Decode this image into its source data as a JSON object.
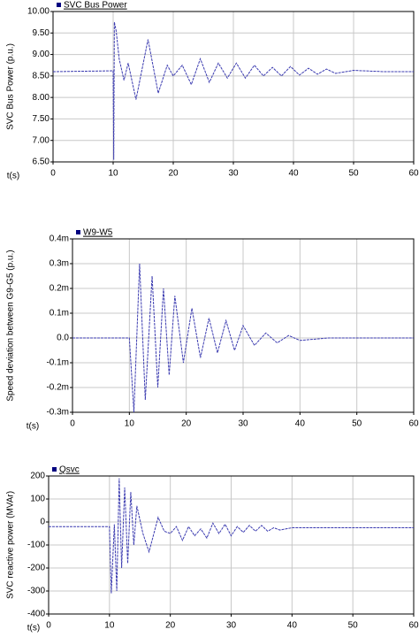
{
  "chart_data": [
    {
      "type": "line",
      "y_label": "SVC Bus Power (p.u.)",
      "x_label": "t(s)",
      "x": [
        0,
        10,
        10.1,
        10.2,
        10.5,
        11,
        11.8,
        12.5,
        13.8,
        15.8,
        17.5,
        19,
        20,
        21.5,
        23,
        24.5,
        26,
        27.5,
        29,
        30.5,
        32,
        33.5,
        35,
        36.5,
        38,
        39.5,
        41,
        42.5,
        44,
        45.5,
        47,
        50,
        55,
        60
      ],
      "series": [
        {
          "name": "SVC Bus Power",
          "color": "#3b3bb0",
          "values": [
            8.6,
            8.62,
            6.55,
            9.75,
            9.55,
            8.9,
            8.4,
            8.8,
            7.95,
            9.35,
            8.1,
            8.75,
            8.5,
            8.75,
            8.3,
            8.9,
            8.35,
            8.8,
            8.45,
            8.8,
            8.45,
            8.75,
            8.5,
            8.7,
            8.5,
            8.72,
            8.52,
            8.68,
            8.54,
            8.66,
            8.56,
            8.63,
            8.6,
            8.6
          ]
        }
      ],
      "xlim": [
        0,
        60
      ],
      "xticks": [
        0,
        10,
        20,
        30,
        40,
        50,
        60
      ],
      "ylim": [
        6.5,
        10
      ],
      "yticks": [
        {
          "value": 6.5,
          "label": "6.50"
        },
        {
          "value": 7,
          "label": "7.00"
        },
        {
          "value": 7.5,
          "label": "7.50"
        },
        {
          "value": 8,
          "label": "8.00"
        },
        {
          "value": 8.5,
          "label": "8.50"
        },
        {
          "value": 9,
          "label": "9.00"
        },
        {
          "value": 9.5,
          "label": "9.50"
        },
        {
          "value": 10,
          "label": "10.00"
        }
      ],
      "grid": true
    },
    {
      "type": "line",
      "y_label": "Speed deviation between G9-G5 (p.u.)",
      "x_label": "t(s)",
      "x": [
        0,
        10,
        10.8,
        11.8,
        12.8,
        14,
        15,
        16,
        17,
        18,
        19.5,
        21,
        22.5,
        24,
        25.5,
        27,
        28.5,
        30,
        32,
        34,
        36,
        38,
        40,
        45,
        60
      ],
      "series": [
        {
          "name": "W9-W5",
          "color": "#3b3bb0",
          "values": [
            0,
            0,
            -0.0003,
            0.0003,
            -0.00025,
            0.00025,
            -0.0002,
            0.0002,
            -0.00015,
            0.00017,
            -0.0001,
            0.00012,
            -8e-05,
            8e-05,
            -6e-05,
            7e-05,
            -5e-05,
            5e-05,
            -3e-05,
            2e-05,
            -2e-05,
            1e-05,
            -1e-05,
            0,
            0
          ]
        }
      ],
      "xlim": [
        0,
        60
      ],
      "xticks": [
        0,
        10,
        20,
        30,
        40,
        50,
        60
      ],
      "ylim": [
        -0.0003,
        0.0004
      ],
      "yticks": [
        {
          "value": -0.0003,
          "label": "-0.3m"
        },
        {
          "value": -0.0002,
          "label": "-0.2m"
        },
        {
          "value": -0.0001,
          "label": "-0.1m"
        },
        {
          "value": 0,
          "label": "0.0"
        },
        {
          "value": 0.0001,
          "label": "0.1m"
        },
        {
          "value": 0.0002,
          "label": "0.2m"
        },
        {
          "value": 0.0003,
          "label": "0.3m"
        },
        {
          "value": 0.0004,
          "label": "0.4m"
        }
      ],
      "grid": true
    },
    {
      "type": "line",
      "y_label": "SVC reactive power (MVAr)",
      "x_label": "t(s)",
      "x": [
        0,
        10,
        10.3,
        10.8,
        11.2,
        11.6,
        12,
        12.5,
        13,
        13.5,
        14,
        14.5,
        15.5,
        16.5,
        18,
        19,
        20,
        21,
        22,
        23,
        24,
        25,
        26,
        27,
        28,
        29,
        30,
        31,
        32,
        33,
        34,
        35,
        36,
        37,
        38,
        40,
        60
      ],
      "series": [
        {
          "name": "Qsvc",
          "color": "#3b3bb0",
          "values": [
            -20,
            -20,
            -310,
            -10,
            -300,
            190,
            -200,
            150,
            -180,
            130,
            -100,
            70,
            -50,
            -130,
            20,
            -40,
            -50,
            -20,
            -80,
            -20,
            -60,
            -30,
            -70,
            -5,
            -50,
            -10,
            -60,
            -20,
            -45,
            -15,
            -40,
            -15,
            -40,
            -25,
            -35,
            -25,
            -25
          ]
        }
      ],
      "xlim": [
        0,
        60
      ],
      "xticks": [
        0,
        10,
        20,
        30,
        40,
        50,
        60
      ],
      "ylim": [
        -400,
        200
      ],
      "yticks": [
        -400,
        -300,
        -200,
        -100,
        0,
        100,
        200
      ],
      "grid": true
    }
  ]
}
